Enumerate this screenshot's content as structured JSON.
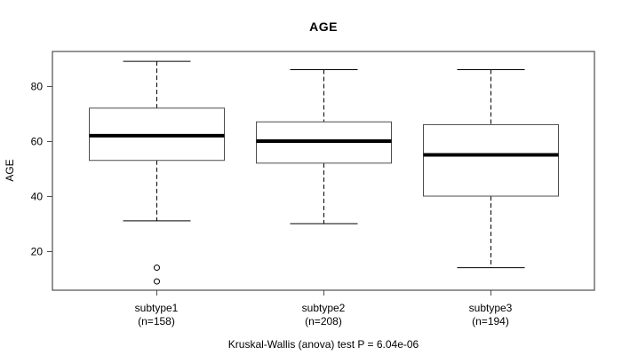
{
  "chart_data": {
    "type": "boxplot",
    "title": "AGE",
    "ylabel": "AGE",
    "xlabel": "",
    "ylim": [
      5.8,
      92.6
    ],
    "y_ticks": [
      20,
      40,
      60,
      80
    ],
    "grid": false,
    "legend": null,
    "groups": [
      {
        "label": "subtype1",
        "n_label": "(n=158)",
        "n": 158,
        "whisker_low": 31,
        "q1": 53,
        "median": 62,
        "q3": 72,
        "whisker_high": 89,
        "outliers": [
          14,
          9
        ]
      },
      {
        "label": "subtype2",
        "n_label": "(n=208)",
        "n": 208,
        "whisker_low": 30,
        "q1": 52,
        "median": 60,
        "q3": 67,
        "whisker_high": 86,
        "outliers": []
      },
      {
        "label": "subtype3",
        "n_label": "(n=194)",
        "n": 194,
        "whisker_low": 14,
        "q1": 40,
        "median": 55,
        "q3": 66,
        "whisker_high": 86,
        "outliers": []
      }
    ],
    "annotation": "Kruskal-Wallis (anova) test P = 6.04e-06",
    "colors": {
      "background": "#ffffff",
      "frame": "#4d4d4d",
      "box_border": "#4d4d4d",
      "box_fill": "#ffffff",
      "line": "#000000",
      "text": "#000000"
    }
  }
}
